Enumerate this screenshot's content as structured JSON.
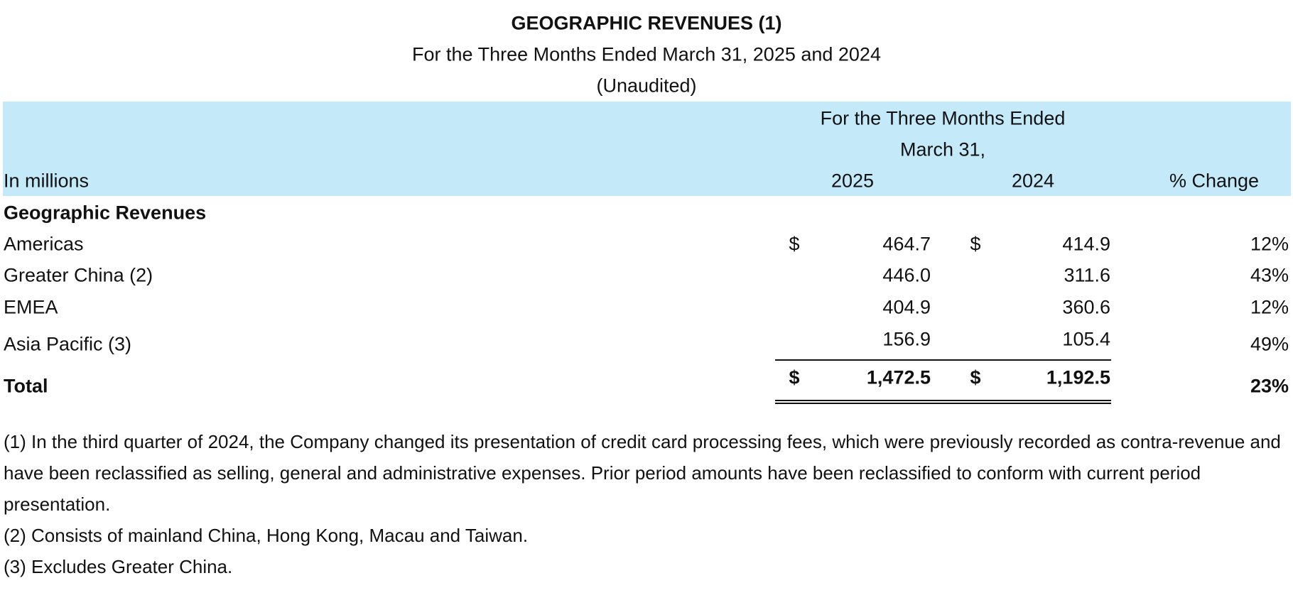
{
  "header": {
    "title": "GEOGRAPHIC REVENUES (1)",
    "subtitle": "For the Three Months Ended March 31, 2025 and 2024",
    "note": "(Unaudited)"
  },
  "table": {
    "period_header": [
      "For the Three Months Ended",
      "March 31,"
    ],
    "unit_label": "In millions",
    "columns": [
      "2025",
      "2024",
      "% Change"
    ],
    "section": "Geographic Revenues",
    "rows": [
      {
        "label": "Americas",
        "currency": "$",
        "values": [
          "464.7",
          "414.9"
        ],
        "change": "12%"
      },
      {
        "label": "Greater China (2)",
        "values": [
          "446.0",
          "311.6"
        ],
        "change": "43%"
      },
      {
        "label": "EMEA",
        "values": [
          "404.9",
          "360.6"
        ],
        "change": "12%"
      },
      {
        "label": "Asia Pacific (3)",
        "values": [
          "156.9",
          "105.4"
        ],
        "change": "49%"
      }
    ],
    "total": {
      "label": "Total",
      "currency": "$",
      "values": [
        "1,472.5",
        "1,192.5"
      ],
      "change": "23%"
    }
  },
  "footnotes": [
    "(1) In the third quarter of 2024, the Company changed its presentation of credit card processing fees, which were previously recorded as contra-revenue and have been reclassified as selling, general and administrative expenses. Prior period amounts have been reclassified to conform with current period presentation.",
    "(2) Consists of mainland China, Hong Kong, Macau and Taiwan.",
    "(3) Excludes Greater China."
  ]
}
